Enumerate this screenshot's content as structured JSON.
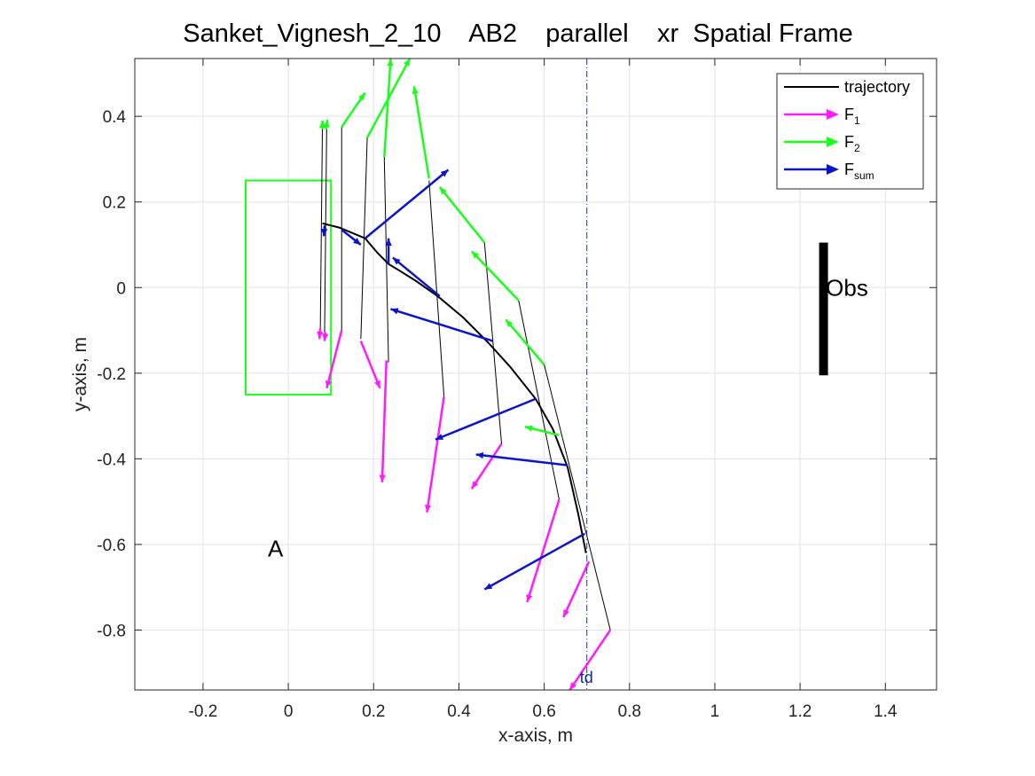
{
  "chart_data": {
    "type": "line",
    "title": "Sanket_Vignesh_2_10    AB2    parallel    xr  Spatial Frame",
    "xlabel": "x-axis, m",
    "ylabel": "y-axis, m",
    "xlim": [
      -0.36,
      1.52
    ],
    "ylim": [
      -0.94,
      0.535
    ],
    "xticks": [
      -0.2,
      0,
      0.2,
      0.4,
      0.6,
      0.8,
      1,
      1.2,
      1.4
    ],
    "xtick_labels": [
      "-0.2",
      "0",
      "0.2",
      "0.4",
      "0.6",
      "0.8",
      "1",
      "1.2",
      "1.4"
    ],
    "yticks": [
      0.4,
      0.2,
      0,
      -0.2,
      -0.4,
      -0.6,
      -0.8
    ],
    "ytick_labels": [
      "0.4",
      "0.2",
      "0",
      "-0.2",
      "-0.4",
      "-0.6",
      "-0.8"
    ],
    "grid": true,
    "legend_position": "top-right",
    "legend": [
      {
        "label": "trajectory",
        "sub": "",
        "color": "#000000",
        "kind": "line"
      },
      {
        "label": "F",
        "sub": "1",
        "color": "#ff1aff",
        "kind": "arrow"
      },
      {
        "label": "F",
        "sub": "2",
        "color": "#1aff1a",
        "kind": "arrow"
      },
      {
        "label": "F",
        "sub": "sum",
        "color": "#0a14c8",
        "kind": "arrow"
      }
    ],
    "colors": {
      "trajectory": "#000000",
      "F1": "#ff1aff",
      "F2": "#1aff1a",
      "Fsum": "#0a14c8",
      "target": "#1a2eb8",
      "region": "#1aff1a",
      "obstacle": "#000000"
    },
    "trajectory": [
      [
        0.08,
        0.15
      ],
      [
        0.12,
        0.14
      ],
      [
        0.18,
        0.115
      ],
      [
        0.21,
        0.08
      ],
      [
        0.235,
        0.055
      ],
      [
        0.26,
        0.04
      ],
      [
        0.3,
        0.015
      ],
      [
        0.35,
        -0.02
      ],
      [
        0.41,
        -0.07
      ],
      [
        0.47,
        -0.13
      ],
      [
        0.52,
        -0.185
      ],
      [
        0.58,
        -0.26
      ],
      [
        0.62,
        -0.33
      ],
      [
        0.655,
        -0.42
      ],
      [
        0.68,
        -0.53
      ],
      [
        0.698,
        -0.62
      ]
    ],
    "tines": [
      {
        "top": [
          0.08,
          0.385
        ],
        "bottom": [
          0.075,
          -0.095
        ]
      },
      {
        "top": [
          0.09,
          0.385
        ],
        "bottom": [
          0.085,
          -0.11
        ]
      },
      {
        "top": [
          0.125,
          0.375
        ],
        "bottom": [
          0.125,
          -0.1
        ]
      },
      {
        "top": [
          0.185,
          0.35
        ],
        "bottom": [
          0.17,
          -0.12
        ]
      },
      {
        "top": [
          0.225,
          0.305
        ],
        "bottom": [
          0.235,
          -0.175
        ]
      },
      {
        "top": [
          0.33,
          0.25
        ],
        "bottom": [
          0.365,
          -0.255
        ]
      },
      {
        "top": [
          0.46,
          0.105
        ],
        "bottom": [
          0.5,
          -0.365
        ]
      },
      {
        "top": [
          0.54,
          -0.03
        ],
        "bottom": [
          0.635,
          -0.495
        ]
      },
      {
        "top": [
          0.6,
          -0.18
        ],
        "bottom": [
          0.755,
          -0.8
        ]
      }
    ],
    "f1_arrows": [
      [
        0.075,
        -0.095,
        0.073,
        -0.12
      ],
      [
        0.087,
        -0.105,
        0.085,
        -0.125
      ],
      [
        0.125,
        -0.1,
        0.09,
        -0.235
      ],
      [
        0.17,
        -0.125,
        0.215,
        -0.235
      ],
      [
        0.23,
        -0.17,
        0.22,
        -0.455
      ],
      [
        0.365,
        -0.255,
        0.325,
        -0.525
      ],
      [
        0.5,
        -0.365,
        0.43,
        -0.47
      ],
      [
        0.635,
        -0.495,
        0.56,
        -0.735
      ],
      [
        0.705,
        -0.64,
        0.645,
        -0.77
      ],
      [
        0.755,
        -0.8,
        0.66,
        -0.94
      ]
    ],
    "f2_arrows": [
      [
        0.08,
        0.37,
        0.08,
        0.39
      ],
      [
        0.088,
        0.37,
        0.092,
        0.392
      ],
      [
        0.125,
        0.375,
        0.18,
        0.455
      ],
      [
        0.185,
        0.35,
        0.285,
        0.535
      ],
      [
        0.225,
        0.305,
        0.24,
        0.535
      ],
      [
        0.33,
        0.255,
        0.295,
        0.47
      ],
      [
        0.46,
        0.105,
        0.355,
        0.235
      ],
      [
        0.54,
        -0.03,
        0.43,
        0.085
      ],
      [
        0.6,
        -0.18,
        0.51,
        -0.075
      ],
      [
        0.635,
        -0.345,
        0.555,
        -0.325
      ]
    ],
    "fsum_arrows": [
      [
        0.085,
        0.145,
        0.083,
        0.12
      ],
      [
        0.125,
        0.135,
        0.17,
        0.1
      ],
      [
        0.18,
        0.115,
        0.375,
        0.275
      ],
      [
        0.235,
        0.055,
        0.235,
        0.115
      ],
      [
        0.355,
        -0.02,
        0.245,
        0.07
      ],
      [
        0.48,
        -0.125,
        0.24,
        -0.05
      ],
      [
        0.58,
        -0.26,
        0.345,
        -0.355
      ],
      [
        0.655,
        -0.415,
        0.44,
        -0.39
      ],
      [
        0.695,
        -0.575,
        0.46,
        -0.705
      ]
    ],
    "target_line": {
      "x": 0.7,
      "label": "td"
    },
    "region_A": {
      "x": [
        -0.1,
        0.1
      ],
      "y": [
        -0.25,
        0.25
      ],
      "label": "A",
      "label_at": [
        -0.03,
        -0.61
      ]
    },
    "obstacle": {
      "x": 1.255,
      "y": [
        -0.205,
        0.105
      ],
      "label": "Obs",
      "label_at": [
        1.31,
        0
      ]
    }
  }
}
